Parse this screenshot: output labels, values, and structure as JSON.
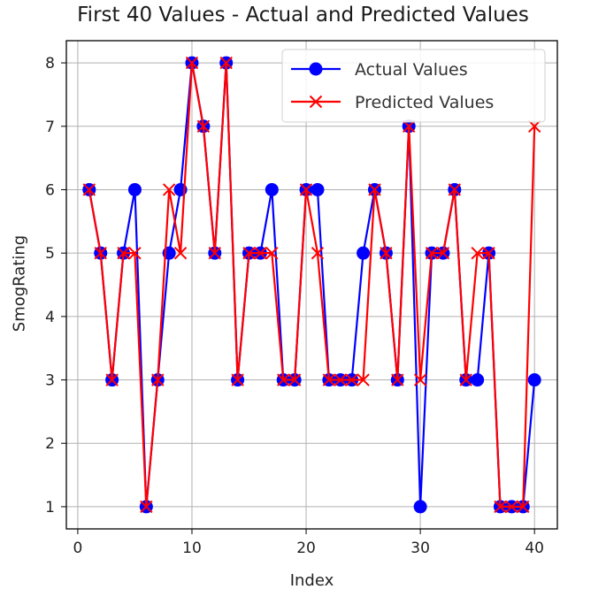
{
  "chart_data": {
    "type": "line",
    "title": "First 40 Values - Actual and Predicted Values",
    "xlabel": "Index",
    "ylabel": "SmogRating",
    "xlim": [
      -1,
      42
    ],
    "ylim": [
      0.65,
      8.35
    ],
    "xticks": [
      0,
      10,
      20,
      30,
      40
    ],
    "yticks": [
      1,
      2,
      3,
      4,
      5,
      6,
      7,
      8
    ],
    "grid": true,
    "legend_position": "upper right",
    "x": [
      1,
      2,
      3,
      4,
      5,
      6,
      7,
      8,
      9,
      10,
      11,
      12,
      13,
      14,
      15,
      16,
      17,
      18,
      19,
      20,
      21,
      22,
      23,
      24,
      25,
      26,
      27,
      28,
      29,
      30,
      31,
      32,
      33,
      34,
      35,
      36,
      37,
      38,
      39,
      40
    ],
    "series": [
      {
        "name": "Actual Values",
        "color": "#0000ff",
        "marker": "circle",
        "values": [
          6,
          5,
          3,
          5,
          6,
          1,
          3,
          5,
          6,
          8,
          7,
          5,
          8,
          3,
          5,
          5,
          6,
          3,
          3,
          6,
          6,
          3,
          3,
          3,
          5,
          6,
          5,
          3,
          7,
          1,
          5,
          5,
          6,
          3,
          3,
          5,
          1,
          1,
          1,
          3
        ]
      },
      {
        "name": "Predicted Values",
        "color": "#ff0000",
        "marker": "x",
        "values": [
          6,
          5,
          3,
          5,
          5,
          1,
          3,
          6,
          5,
          8,
          7,
          5,
          8,
          3,
          5,
          5,
          5,
          3,
          3,
          6,
          5,
          3,
          3,
          3,
          3,
          6,
          5,
          3,
          7,
          3,
          5,
          5,
          6,
          3,
          5,
          5,
          1,
          1,
          1,
          7
        ]
      }
    ]
  }
}
